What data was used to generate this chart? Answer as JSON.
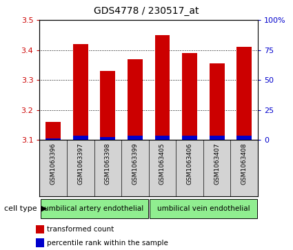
{
  "title": "GDS4778 / 230517_at",
  "samples": [
    "GSM1063396",
    "GSM1063397",
    "GSM1063398",
    "GSM1063399",
    "GSM1063405",
    "GSM1063406",
    "GSM1063407",
    "GSM1063408"
  ],
  "transformed_counts": [
    3.16,
    3.42,
    3.33,
    3.37,
    3.45,
    3.39,
    3.355,
    3.41
  ],
  "percentile_ranks": [
    1.5,
    3.5,
    2.5,
    3.5,
    3.5,
    3.5,
    3.5,
    3.5
  ],
  "bar_bottom": 3.1,
  "ylim_left": [
    3.1,
    3.5
  ],
  "ylim_right": [
    0,
    100
  ],
  "yticks_left": [
    3.1,
    3.2,
    3.3,
    3.4,
    3.5
  ],
  "yticks_right": [
    0,
    25,
    50,
    75,
    100
  ],
  "ytick_labels_right": [
    "0",
    "25",
    "50",
    "75",
    "100%"
  ],
  "bar_color": "#cc0000",
  "percentile_color": "#0000cc",
  "grid_color": "#000000",
  "cell_type_groups": [
    {
      "label": "umbilical artery endothelial",
      "start": 0,
      "end": 4,
      "color": "#90ee90"
    },
    {
      "label": "umbilical vein endothelial",
      "start": 4,
      "end": 8,
      "color": "#90ee90"
    }
  ],
  "cell_type_label": "cell type",
  "legend_items": [
    {
      "color": "#cc0000",
      "label": "transformed count"
    },
    {
      "color": "#0000cc",
      "label": "percentile rank within the sample"
    }
  ],
  "bar_width": 0.55,
  "bg_color": "#ffffff",
  "tick_label_color_left": "#cc0000",
  "tick_label_color_right": "#0000cc",
  "gray_color": "#d3d3d3",
  "figsize": [
    4.25,
    3.63
  ],
  "dpi": 100
}
